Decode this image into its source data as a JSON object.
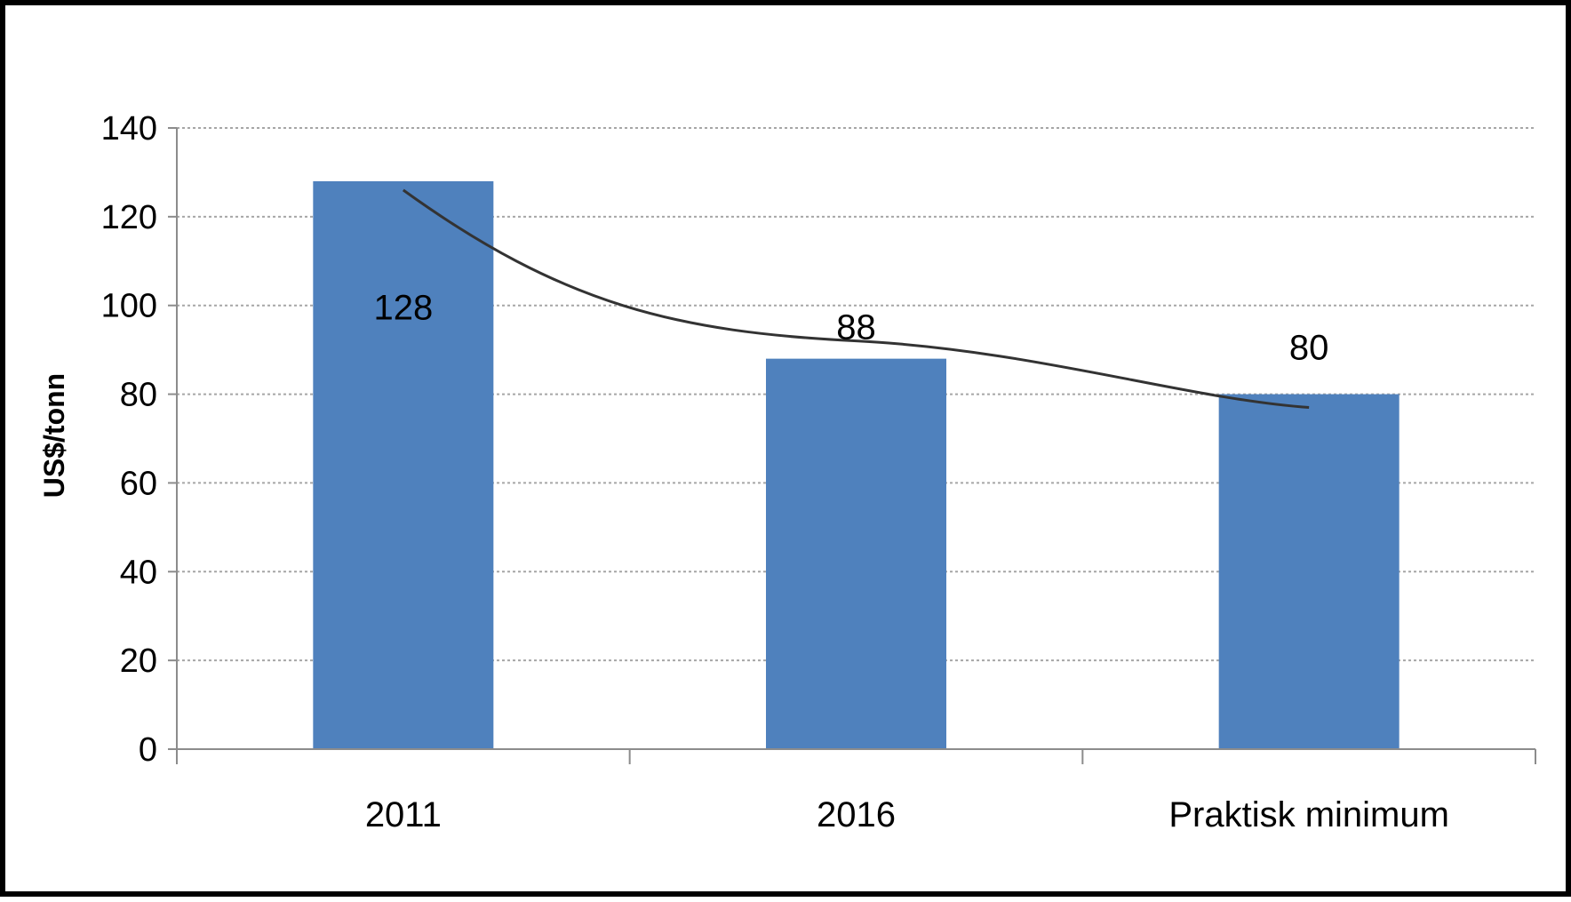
{
  "chart_data": {
    "type": "bar",
    "title": "",
    "xlabel": "",
    "ylabel": "US$/tonn",
    "categories": [
      "2011",
      "2016",
      "Praktisk minimum"
    ],
    "values": [
      128,
      88,
      80
    ],
    "data_labels": [
      "128",
      "88",
      "80"
    ],
    "ylim": [
      0,
      140
    ],
    "yticks": [
      0,
      20,
      40,
      60,
      80,
      100,
      120,
      140
    ],
    "grid": true,
    "legend": "none",
    "bar_color": "#4f81bd",
    "trendline": {
      "type": "power",
      "color": "#333333",
      "points": [
        {
          "x": "2011",
          "y": 126
        },
        {
          "x": "2016",
          "y": 92
        },
        {
          "x": "Praktisk minimum",
          "y": 77
        }
      ]
    }
  }
}
